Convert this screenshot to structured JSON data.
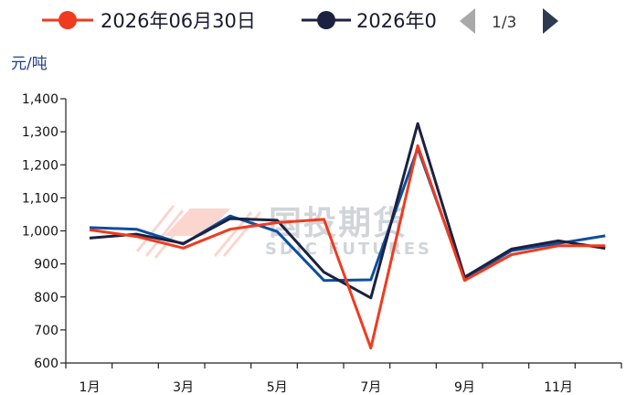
{
  "legend": {
    "items": [
      "2026年06月30日",
      "2026年0"
    ],
    "page_indicator": "1/3",
    "prev_icon": "triangle-left-icon",
    "next_icon": "triangle-right-icon"
  },
  "watermark": {
    "main": "国投期货",
    "sub": "SDIC FUTURES"
  },
  "chart_data": {
    "type": "line",
    "unit": "元/吨",
    "ylim": [
      600,
      1400
    ],
    "yticks": [
      600,
      700,
      800,
      900,
      1000,
      1100,
      1200,
      1300,
      1400
    ],
    "ytick_labels": [
      "600",
      "700",
      "800",
      "900",
      "1,000",
      "1,100",
      "1,200",
      "1,300",
      "1,400"
    ],
    "xtick_labels": [
      "1月",
      "3月",
      "5月",
      "7月",
      "9月",
      "11月"
    ],
    "months": [
      "1月",
      "2月",
      "3月",
      "4月",
      "5月",
      "6月",
      "7月",
      "8月",
      "9月",
      "10月",
      "11月",
      "12月"
    ],
    "series": [
      {
        "name": "2026年06月30日",
        "color": "#ef3b1f",
        "values": [
          1003,
          983,
          948,
          1005,
          1025,
          1035,
          645,
          1258,
          850,
          928,
          955,
          955
        ]
      },
      {
        "name": "2026年0",
        "color": "#1c2140",
        "values": [
          978,
          990,
          962,
          1037,
          1032,
          875,
          797,
          1325,
          860,
          945,
          970,
          947
        ]
      },
      {
        "name": "",
        "color": "#0d4f9c",
        "values": [
          1010,
          1005,
          960,
          1045,
          998,
          850,
          852,
          1250,
          855,
          940,
          962,
          985
        ]
      }
    ],
    "grid": false
  },
  "colors": {
    "axis": "#222222",
    "unit": "#1f3f8f",
    "arrow_prev": "#a9a9a9",
    "arrow_next": "#2e3b4e"
  }
}
